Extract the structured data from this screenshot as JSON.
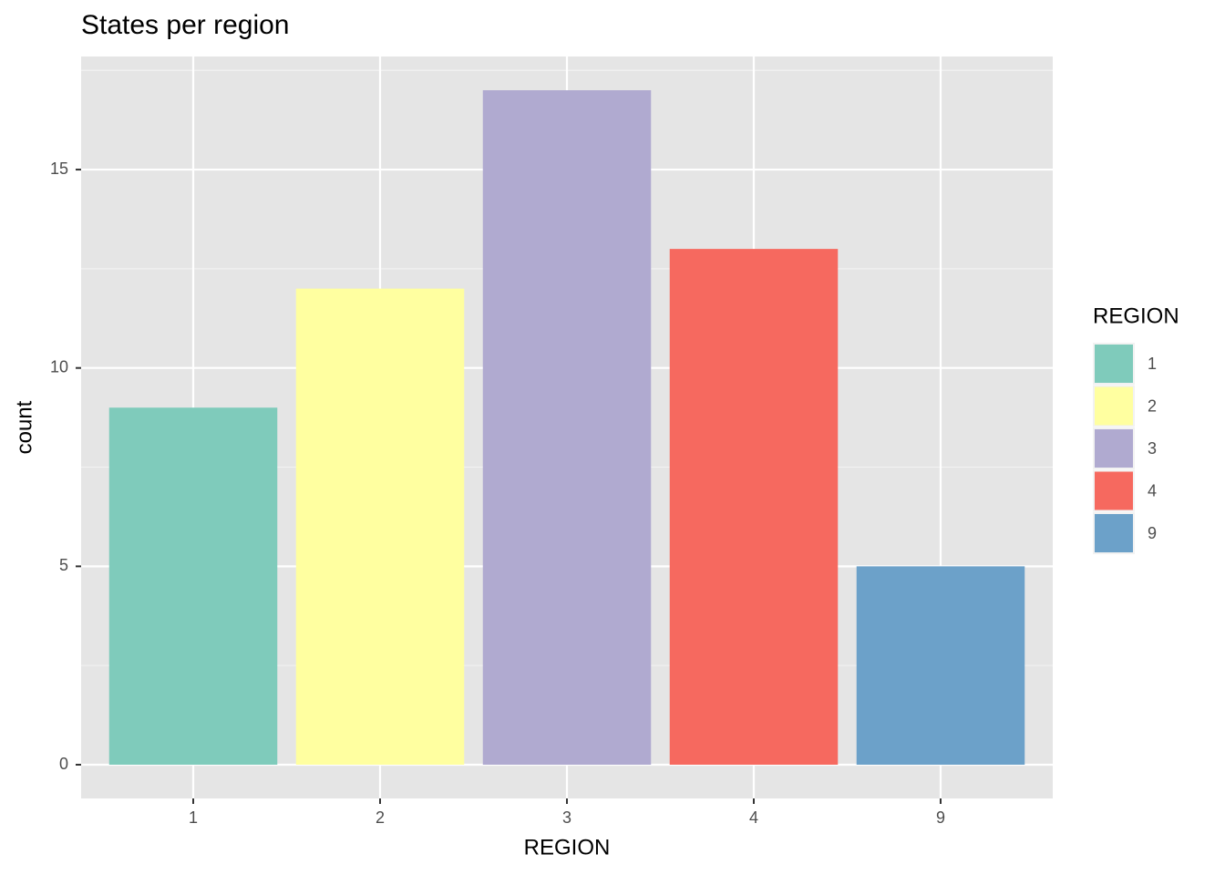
{
  "chart_data": {
    "type": "bar",
    "title": "States per region",
    "x_label": "REGION",
    "y_label": "count",
    "categories": [
      "1",
      "2",
      "3",
      "4",
      "9"
    ],
    "values": [
      9,
      12,
      17,
      13,
      5
    ],
    "colors": [
      "#7fcbbb",
      "#ffffa0",
      "#b0aad0",
      "#f6695f",
      "#6ca1c9"
    ],
    "legend_title": "REGION",
    "legend_position": "right",
    "ylim": [
      -0.85,
      17.85
    ],
    "yticks": [
      0,
      5,
      10,
      15
    ],
    "yminor": [
      2.5,
      7.5,
      12.5,
      17.5
    ],
    "grid": true
  }
}
